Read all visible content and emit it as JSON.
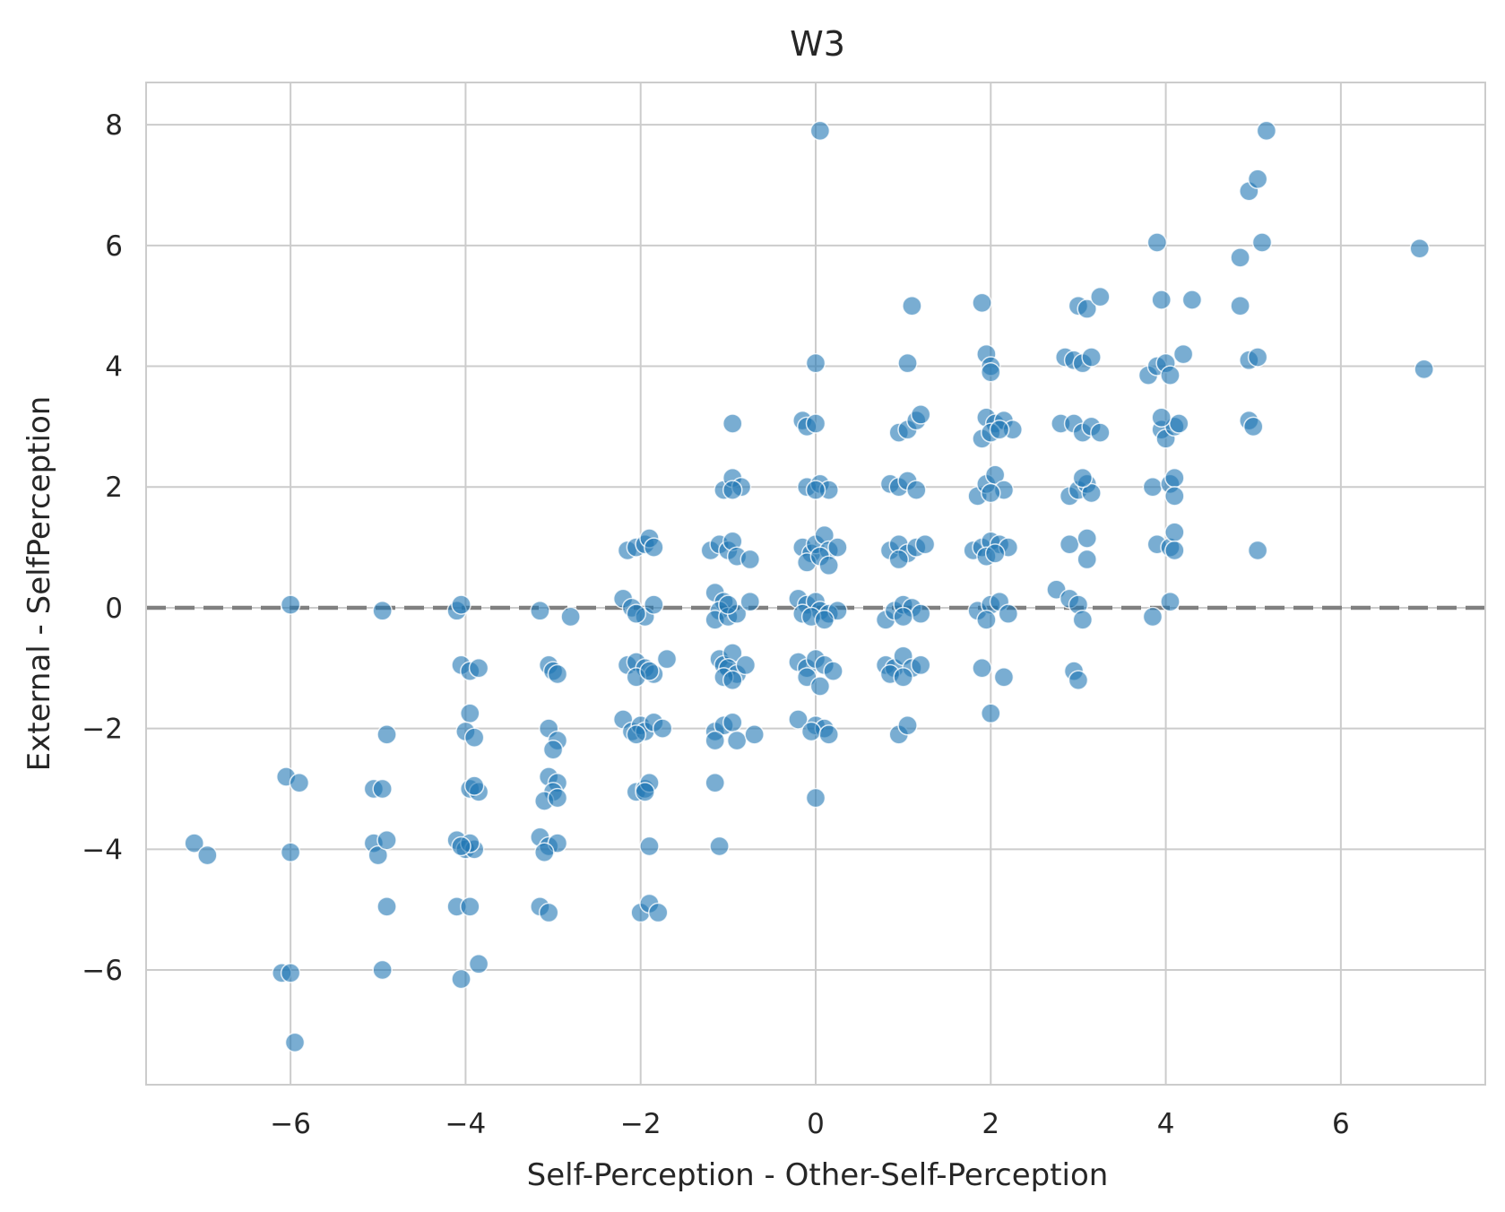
{
  "chart_data": {
    "type": "scatter",
    "title": "W3",
    "xlabel": "Self-Perception - Other-Self-Perception",
    "ylabel": "External - SelfPerception",
    "xlim": [
      -7.65,
      7.65
    ],
    "ylim": [
      -7.9,
      8.7
    ],
    "xticks": [
      -6,
      -4,
      -2,
      0,
      2,
      4,
      6
    ],
    "yticks": [
      -6,
      -4,
      -2,
      0,
      2,
      4,
      6,
      8
    ],
    "grid": true,
    "reference_line": {
      "orientation": "horizontal",
      "y": 0,
      "style": "dashed",
      "color": "#808080"
    },
    "point_color": "#1f77b4",
    "points": [
      [
        -7.1,
        -3.9
      ],
      [
        -6.95,
        -4.1
      ],
      [
        -6.05,
        -2.8
      ],
      [
        -5.9,
        -2.9
      ],
      [
        -6.0,
        0.05
      ],
      [
        -6.0,
        -4.05
      ],
      [
        -6.1,
        -6.05
      ],
      [
        -6.0,
        -6.05
      ],
      [
        -5.95,
        -7.2
      ],
      [
        -5.05,
        -3.0
      ],
      [
        -4.95,
        -3.0
      ],
      [
        -5.05,
        -3.9
      ],
      [
        -5.0,
        -4.1
      ],
      [
        -4.9,
        -3.85
      ],
      [
        -4.9,
        -2.1
      ],
      [
        -4.95,
        -0.05
      ],
      [
        -4.9,
        -4.95
      ],
      [
        -4.95,
        -6.0
      ],
      [
        -4.1,
        -0.05
      ],
      [
        -4.05,
        0.05
      ],
      [
        -4.05,
        -0.95
      ],
      [
        -3.95,
        -1.05
      ],
      [
        -3.85,
        -1.0
      ],
      [
        -3.95,
        -1.75
      ],
      [
        -4.0,
        -2.05
      ],
      [
        -3.9,
        -2.15
      ],
      [
        -3.95,
        -3.0
      ],
      [
        -3.85,
        -3.05
      ],
      [
        -3.9,
        -2.95
      ],
      [
        -4.1,
        -3.85
      ],
      [
        -4.0,
        -4.0
      ],
      [
        -3.9,
        -4.0
      ],
      [
        -3.95,
        -3.9
      ],
      [
        -4.05,
        -3.95
      ],
      [
        -4.1,
        -4.95
      ],
      [
        -3.95,
        -4.95
      ],
      [
        -4.05,
        -6.15
      ],
      [
        -3.85,
        -5.9
      ],
      [
        -3.15,
        -0.05
      ],
      [
        -2.8,
        -0.15
      ],
      [
        -3.05,
        -0.95
      ],
      [
        -3.0,
        -1.05
      ],
      [
        -2.95,
        -1.1
      ],
      [
        -3.05,
        -2.0
      ],
      [
        -2.95,
        -2.2
      ],
      [
        -3.0,
        -2.35
      ],
      [
        -3.05,
        -2.8
      ],
      [
        -2.95,
        -2.9
      ],
      [
        -3.0,
        -3.05
      ],
      [
        -3.1,
        -3.2
      ],
      [
        -2.95,
        -3.15
      ],
      [
        -3.15,
        -3.8
      ],
      [
        -3.05,
        -3.95
      ],
      [
        -2.95,
        -3.9
      ],
      [
        -3.1,
        -4.05
      ],
      [
        -3.15,
        -4.95
      ],
      [
        -3.05,
        -5.05
      ],
      [
        -2.2,
        0.15
      ],
      [
        -2.15,
        0.95
      ],
      [
        -2.05,
        1.0
      ],
      [
        -1.95,
        1.05
      ],
      [
        -1.9,
        1.15
      ],
      [
        -1.85,
        1.0
      ],
      [
        -2.1,
        0.0
      ],
      [
        -1.95,
        -0.15
      ],
      [
        -1.85,
        0.05
      ],
      [
        -2.05,
        -0.1
      ],
      [
        -2.15,
        -0.95
      ],
      [
        -2.05,
        -0.9
      ],
      [
        -1.95,
        -1.0
      ],
      [
        -1.85,
        -1.1
      ],
      [
        -1.7,
        -0.85
      ],
      [
        -2.05,
        -1.15
      ],
      [
        -1.9,
        -1.05
      ],
      [
        -2.2,
        -1.85
      ],
      [
        -2.1,
        -2.05
      ],
      [
        -2.0,
        -1.95
      ],
      [
        -1.95,
        -2.05
      ],
      [
        -1.85,
        -1.9
      ],
      [
        -1.75,
        -2.0
      ],
      [
        -2.05,
        -2.1
      ],
      [
        -2.05,
        -3.05
      ],
      [
        -1.95,
        -3.0
      ],
      [
        -1.9,
        -2.9
      ],
      [
        -1.95,
        -3.05
      ],
      [
        -1.9,
        -3.95
      ],
      [
        -2.0,
        -5.05
      ],
      [
        -1.9,
        -4.9
      ],
      [
        -1.8,
        -5.05
      ],
      [
        -1.2,
        0.95
      ],
      [
        -1.1,
        1.05
      ],
      [
        -1.0,
        0.95
      ],
      [
        -0.95,
        1.1
      ],
      [
        -0.9,
        0.85
      ],
      [
        -0.75,
        0.8
      ],
      [
        -1.15,
        0.25
      ],
      [
        -1.05,
        0.1
      ],
      [
        -1.1,
        -0.05
      ],
      [
        -1.15,
        -0.2
      ],
      [
        -1.0,
        -0.15
      ],
      [
        -0.9,
        -0.1
      ],
      [
        -0.75,
        0.1
      ],
      [
        -1.0,
        0.05
      ],
      [
        -1.1,
        -0.85
      ],
      [
        -1.05,
        -0.95
      ],
      [
        -0.95,
        -0.75
      ],
      [
        -1.0,
        -1.0
      ],
      [
        -0.9,
        -1.1
      ],
      [
        -0.8,
        -0.95
      ],
      [
        -1.05,
        -1.15
      ],
      [
        -0.95,
        -1.2
      ],
      [
        -1.15,
        -2.05
      ],
      [
        -1.05,
        -1.95
      ],
      [
        -0.95,
        -1.9
      ],
      [
        -1.15,
        -2.2
      ],
      [
        -0.9,
        -2.2
      ],
      [
        -0.7,
        -2.1
      ],
      [
        -1.15,
        -2.9
      ],
      [
        -1.1,
        -3.95
      ],
      [
        -1.05,
        1.95
      ],
      [
        -0.95,
        2.15
      ],
      [
        -0.85,
        2.0
      ],
      [
        -0.95,
        1.95
      ],
      [
        -0.95,
        3.05
      ],
      [
        -0.15,
        3.1
      ],
      [
        -0.1,
        3.0
      ],
      [
        0.0,
        3.05
      ],
      [
        0.0,
        4.05
      ],
      [
        0.05,
        7.9
      ],
      [
        -0.1,
        2.0
      ],
      [
        0.05,
        2.05
      ],
      [
        0.15,
        1.95
      ],
      [
        0.0,
        1.95
      ],
      [
        -0.15,
        1.0
      ],
      [
        -0.05,
        0.9
      ],
      [
        0.0,
        1.05
      ],
      [
        0.1,
        1.2
      ],
      [
        0.15,
        0.95
      ],
      [
        0.25,
        1.0
      ],
      [
        -0.1,
        0.75
      ],
      [
        0.05,
        0.85
      ],
      [
        0.15,
        0.7
      ],
      [
        -0.2,
        0.15
      ],
      [
        -0.1,
        0.05
      ],
      [
        0.0,
        0.1
      ],
      [
        0.05,
        -0.05
      ],
      [
        0.15,
        -0.1
      ],
      [
        0.25,
        -0.05
      ],
      [
        -0.15,
        -0.1
      ],
      [
        -0.05,
        -0.15
      ],
      [
        0.1,
        -0.2
      ],
      [
        -0.2,
        -0.9
      ],
      [
        -0.1,
        -1.0
      ],
      [
        0.0,
        -0.85
      ],
      [
        0.1,
        -0.95
      ],
      [
        0.2,
        -1.05
      ],
      [
        -0.1,
        -1.15
      ],
      [
        0.05,
        -1.3
      ],
      [
        -0.2,
        -1.85
      ],
      [
        0.0,
        -1.95
      ],
      [
        0.1,
        -2.0
      ],
      [
        -0.05,
        -2.05
      ],
      [
        0.15,
        -2.1
      ],
      [
        0.0,
        -3.15
      ],
      [
        0.95,
        2.9
      ],
      [
        1.05,
        2.95
      ],
      [
        1.15,
        3.1
      ],
      [
        1.2,
        3.2
      ],
      [
        1.05,
        4.05
      ],
      [
        1.1,
        5.0
      ],
      [
        0.85,
        2.05
      ],
      [
        0.95,
        2.0
      ],
      [
        1.05,
        2.1
      ],
      [
        1.15,
        1.95
      ],
      [
        0.85,
        0.95
      ],
      [
        0.95,
        1.05
      ],
      [
        1.05,
        0.9
      ],
      [
        1.15,
        1.0
      ],
      [
        1.25,
        1.05
      ],
      [
        0.95,
        0.8
      ],
      [
        0.8,
        -0.2
      ],
      [
        0.9,
        -0.05
      ],
      [
        1.0,
        0.05
      ],
      [
        1.1,
        0.0
      ],
      [
        1.2,
        -0.1
      ],
      [
        1.0,
        -0.15
      ],
      [
        0.8,
        -0.95
      ],
      [
        0.9,
        -1.0
      ],
      [
        1.0,
        -0.8
      ],
      [
        1.1,
        -1.0
      ],
      [
        1.2,
        -0.95
      ],
      [
        0.85,
        -1.1
      ],
      [
        1.0,
        -1.15
      ],
      [
        0.95,
        -2.1
      ],
      [
        1.05,
        -1.95
      ],
      [
        1.9,
        5.05
      ],
      [
        1.95,
        4.2
      ],
      [
        2.0,
        4.0
      ],
      [
        2.0,
        3.9
      ],
      [
        1.95,
        3.15
      ],
      [
        2.05,
        3.05
      ],
      [
        2.15,
        3.1
      ],
      [
        2.25,
        2.95
      ],
      [
        1.9,
        2.8
      ],
      [
        2.0,
        2.9
      ],
      [
        2.1,
        2.95
      ],
      [
        1.85,
        1.85
      ],
      [
        1.95,
        2.05
      ],
      [
        2.05,
        2.2
      ],
      [
        2.15,
        1.95
      ],
      [
        2.0,
        1.9
      ],
      [
        1.8,
        0.95
      ],
      [
        1.9,
        1.0
      ],
      [
        2.0,
        1.1
      ],
      [
        2.1,
        1.05
      ],
      [
        2.2,
        1.0
      ],
      [
        1.95,
        0.85
      ],
      [
        2.05,
        0.9
      ],
      [
        1.85,
        -0.05
      ],
      [
        2.0,
        0.05
      ],
      [
        2.1,
        0.1
      ],
      [
        2.2,
        -0.1
      ],
      [
        1.95,
        -0.2
      ],
      [
        1.9,
        -1.0
      ],
      [
        2.15,
        -1.15
      ],
      [
        2.0,
        -1.75
      ],
      [
        2.75,
        0.3
      ],
      [
        2.9,
        0.15
      ],
      [
        3.0,
        0.05
      ],
      [
        3.05,
        -0.2
      ],
      [
        2.95,
        -1.05
      ],
      [
        3.0,
        -1.2
      ],
      [
        2.9,
        1.05
      ],
      [
        3.1,
        1.15
      ],
      [
        3.1,
        0.8
      ],
      [
        2.9,
        1.85
      ],
      [
        3.0,
        1.95
      ],
      [
        3.1,
        2.05
      ],
      [
        3.15,
        1.9
      ],
      [
        3.05,
        2.15
      ],
      [
        2.8,
        3.05
      ],
      [
        2.95,
        3.05
      ],
      [
        3.05,
        2.9
      ],
      [
        3.15,
        3.0
      ],
      [
        3.25,
        2.9
      ],
      [
        2.85,
        4.15
      ],
      [
        2.95,
        4.1
      ],
      [
        3.05,
        4.05
      ],
      [
        3.15,
        4.15
      ],
      [
        3.0,
        5.0
      ],
      [
        3.1,
        4.95
      ],
      [
        3.25,
        5.15
      ],
      [
        3.85,
        -0.15
      ],
      [
        4.05,
        0.1
      ],
      [
        3.9,
        1.05
      ],
      [
        4.05,
        1.0
      ],
      [
        4.1,
        1.25
      ],
      [
        4.1,
        0.95
      ],
      [
        3.85,
        2.0
      ],
      [
        4.05,
        2.05
      ],
      [
        4.1,
        2.15
      ],
      [
        4.1,
        1.85
      ],
      [
        3.95,
        2.95
      ],
      [
        4.0,
        2.8
      ],
      [
        4.1,
        3.0
      ],
      [
        4.15,
        3.05
      ],
      [
        3.95,
        3.15
      ],
      [
        3.8,
        3.85
      ],
      [
        3.9,
        4.0
      ],
      [
        4.0,
        4.05
      ],
      [
        4.05,
        3.85
      ],
      [
        4.2,
        4.2
      ],
      [
        3.95,
        5.1
      ],
      [
        4.3,
        5.1
      ],
      [
        3.9,
        6.05
      ],
      [
        4.85,
        5.8
      ],
      [
        4.85,
        5.0
      ],
      [
        4.95,
        4.1
      ],
      [
        5.05,
        4.15
      ],
      [
        4.95,
        3.1
      ],
      [
        5.0,
        3.0
      ],
      [
        5.05,
        0.95
      ],
      [
        4.95,
        6.9
      ],
      [
        5.05,
        7.1
      ],
      [
        5.1,
        6.05
      ],
      [
        5.15,
        7.9
      ],
      [
        6.9,
        5.95
      ],
      [
        6.95,
        3.95
      ]
    ]
  }
}
